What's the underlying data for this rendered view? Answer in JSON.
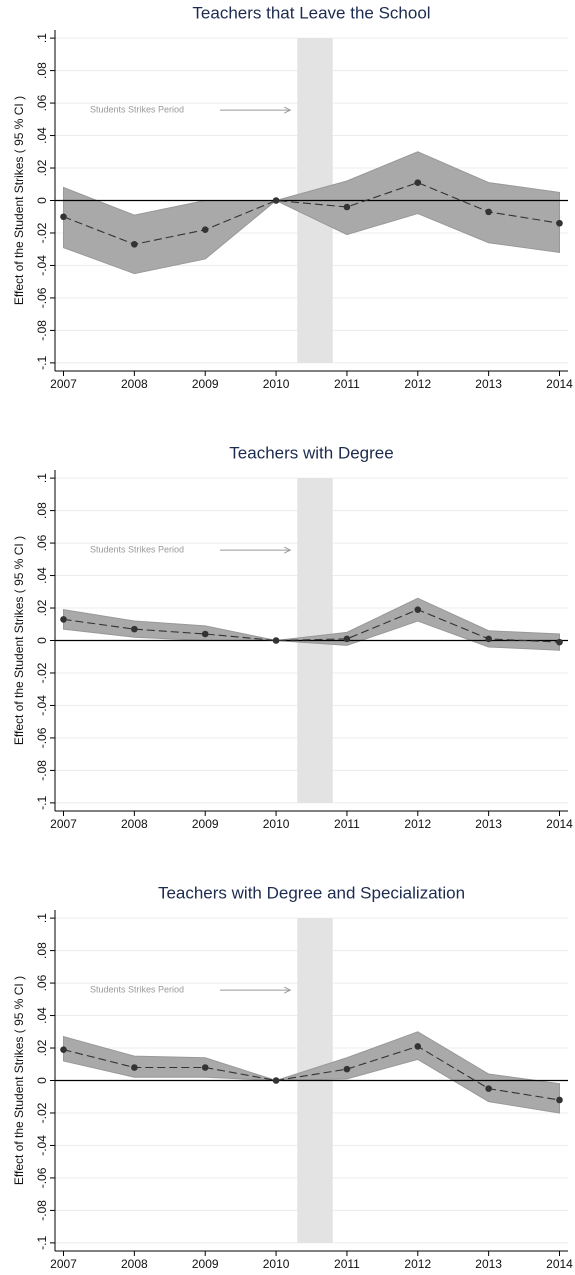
{
  "chart_data": [
    {
      "type": "line",
      "title": "Teachers that Leave the School",
      "y_label": "Effect of the Student Strikes ( 95 % CI )",
      "annotation": "Students Strikes Period",
      "x": [
        2007,
        2008,
        2009,
        2010,
        2011,
        2012,
        2013,
        2014
      ],
      "values": [
        -0.01,
        -0.027,
        -0.018,
        0,
        -0.004,
        0.011,
        -0.007,
        -0.014
      ],
      "lower": [
        -0.029,
        -0.045,
        -0.036,
        0,
        -0.021,
        -0.008,
        -0.026,
        -0.032
      ],
      "upper": [
        0.008,
        -0.009,
        0,
        0,
        0.012,
        0.03,
        0.011,
        0.005
      ],
      "shade": [
        2010.3,
        2010.8
      ],
      "arrow_to": 2010.2,
      "color": "#333333",
      "band_color": "#a9a9a9",
      "shade_color": "#e3e3e3",
      "xlim": [
        2006.88,
        2014.12
      ],
      "ylim": [
        -0.105,
        0.105
      ],
      "xticks": [
        2007,
        2008,
        2009,
        2010,
        2011,
        2012,
        2013,
        2014
      ],
      "yticks": [
        {
          "value": 0.1,
          "label": ".1"
        },
        {
          "value": 0.08,
          "label": ".08"
        },
        {
          "value": 0.06,
          "label": ".06"
        },
        {
          "value": 0.04,
          "label": ".04"
        },
        {
          "value": 0.02,
          "label": ".02"
        },
        0,
        {
          "value": -0.02,
          "label": "-.02"
        },
        {
          "value": -0.04,
          "label": "-.04"
        },
        {
          "value": -0.06,
          "label": "-.06"
        },
        {
          "value": -0.08,
          "label": "-.08"
        },
        {
          "value": -0.1,
          "label": "-.1"
        }
      ],
      "grid": true
    },
    {
      "type": "line",
      "title": "Teachers with Degree",
      "y_label": "Effect of the Student Strikes ( 95 % CI )",
      "annotation": "Students Strikes Period",
      "x": [
        2007,
        2008,
        2009,
        2010,
        2011,
        2012,
        2013,
        2014
      ],
      "values": [
        0.013,
        0.007,
        0.004,
        0,
        0.001,
        0.019,
        0.001,
        -0.001
      ],
      "lower": [
        0.007,
        0.002,
        0,
        0,
        -0.003,
        0.012,
        -0.004,
        -0.006
      ],
      "upper": [
        0.019,
        0.012,
        0.009,
        0,
        0.005,
        0.026,
        0.006,
        0.004
      ],
      "shade": [
        2010.3,
        2010.8
      ],
      "arrow_to": 2010.2,
      "color": "#333333",
      "band_color": "#a9a9a9",
      "shade_color": "#e3e3e3",
      "xlim": [
        2006.88,
        2014.12
      ],
      "ylim": [
        -0.105,
        0.105
      ],
      "xticks": [
        2007,
        2008,
        2009,
        2010,
        2011,
        2012,
        2013,
        2014
      ],
      "yticks": [
        {
          "value": 0.1,
          "label": ".1"
        },
        {
          "value": 0.08,
          "label": ".08"
        },
        {
          "value": 0.06,
          "label": ".06"
        },
        {
          "value": 0.04,
          "label": ".04"
        },
        {
          "value": 0.02,
          "label": ".02"
        },
        0,
        {
          "value": -0.02,
          "label": "-.02"
        },
        {
          "value": -0.04,
          "label": "-.04"
        },
        {
          "value": -0.06,
          "label": "-.06"
        },
        {
          "value": -0.08,
          "label": "-.08"
        },
        {
          "value": -0.1,
          "label": "-.1"
        }
      ],
      "grid": true
    },
    {
      "type": "line",
      "title": "Teachers with Degree and Specialization",
      "y_label": "Effect of the Student Strikes ( 95 % CI )",
      "annotation": "Students Strikes Period",
      "x": [
        2007,
        2008,
        2009,
        2010,
        2011,
        2012,
        2013,
        2014
      ],
      "values": [
        0.019,
        0.008,
        0.008,
        0,
        0.007,
        0.021,
        -0.005,
        -0.012
      ],
      "lower": [
        0.012,
        0.002,
        0.002,
        0,
        0.001,
        0.013,
        -0.013,
        -0.02
      ],
      "upper": [
        0.027,
        0.015,
        0.014,
        0,
        0.014,
        0.03,
        0.004,
        -0.002
      ],
      "shade": [
        2010.3,
        2010.8
      ],
      "arrow_to": 2010.2,
      "color": "#333333",
      "band_color": "#a9a9a9",
      "shade_color": "#e3e3e3",
      "xlim": [
        2006.88,
        2014.12
      ],
      "ylim": [
        -0.105,
        0.105
      ],
      "xticks": [
        2007,
        2008,
        2009,
        2010,
        2011,
        2012,
        2013,
        2014
      ],
      "yticks": [
        {
          "value": 0.1,
          "label": ".1"
        },
        {
          "value": 0.08,
          "label": ".08"
        },
        {
          "value": 0.06,
          "label": ".06"
        },
        {
          "value": 0.04,
          "label": ".04"
        },
        {
          "value": 0.02,
          "label": ".02"
        },
        0,
        {
          "value": -0.02,
          "label": "-.02"
        },
        {
          "value": -0.04,
          "label": "-.04"
        },
        {
          "value": -0.06,
          "label": "-.06"
        },
        {
          "value": -0.08,
          "label": "-.08"
        },
        {
          "value": -0.1,
          "label": "-.1"
        }
      ],
      "grid": true
    }
  ]
}
